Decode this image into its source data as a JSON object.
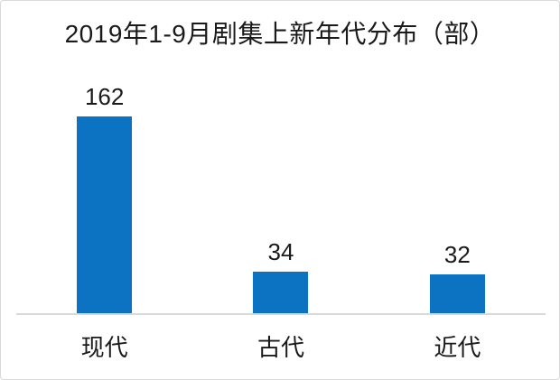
{
  "chart_data": {
    "type": "bar",
    "title": "2019年1-9月剧集上新年代分布（部）",
    "categories": [
      "现代",
      "古代",
      "近代"
    ],
    "values": [
      162,
      34,
      32
    ],
    "xlabel": "",
    "ylabel": "",
    "ylim": [
      0,
      170
    ],
    "grid": false,
    "legend": "none",
    "value_labels_shown": true,
    "bar_color": "#0c72c2",
    "axis_line_color": "#d9d9d9",
    "text_color": "#1a1a1a",
    "card_border_color": "#d9d9d9",
    "background_color": "#ffffff"
  }
}
